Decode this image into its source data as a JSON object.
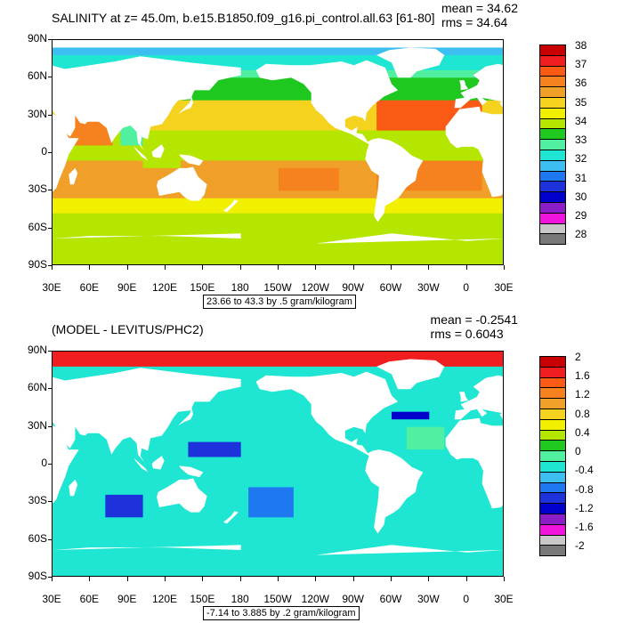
{
  "panels": [
    {
      "title": "SALINITY at z=  45.0m, b.e15.B1850.f09_g16.pi_control.all.63 [61-80]",
      "stats": {
        "mean": "mean = 34.62",
        "rms": "rms = 34.64"
      },
      "info": "23.66 to 43.3 by .5 gram/kilogram",
      "colorbar": {
        "labels": [
          "38",
          "37",
          "36",
          "35",
          "34",
          "33",
          "32",
          "31",
          "30",
          "29",
          "28"
        ],
        "colors": [
          "#c80000",
          "#f01e1e",
          "#fa5a14",
          "#f5821e",
          "#f0a028",
          "#f5d21e",
          "#f0f000",
          "#b4e600",
          "#1ec81e",
          "#50f0a0",
          "#1ee6d2",
          "#3cbef0",
          "#1e78f0",
          "#1e32dc",
          "#0000cd",
          "#8c1ec8",
          "#f014dc",
          "#c8c8c8",
          "#787878"
        ]
      },
      "field": "salinity"
    },
    {
      "title": "(MODEL - LEVITUS/PHC2)",
      "stats": {
        "mean": "mean = -0.2541",
        "rms": "rms = 0.6043"
      },
      "info": "-7.14 to 3.885 by .2 gram/kilogram",
      "colorbar": {
        "labels": [
          "2",
          "1.6",
          "1.2",
          "0.8",
          "0.4",
          "0",
          "-0.4",
          "-0.8",
          "-1.2",
          "-1.6",
          "-2"
        ],
        "colors": [
          "#c80000",
          "#f01e1e",
          "#fa5a14",
          "#f5821e",
          "#f0a028",
          "#f5d21e",
          "#f0f000",
          "#b4e600",
          "#1ec81e",
          "#50f0a0",
          "#1ee6d2",
          "#3cbef0",
          "#1e78f0",
          "#1e32dc",
          "#0000cd",
          "#8c1ec8",
          "#f014dc",
          "#c8c8c8",
          "#787878"
        ]
      },
      "field": "difference"
    }
  ],
  "axes": {
    "lat_labels": [
      "90N",
      "60N",
      "30N",
      "0",
      "30S",
      "60S",
      "90S"
    ],
    "lon_labels": [
      "30E",
      "60E",
      "90E",
      "120E",
      "150E",
      "180",
      "150W",
      "120W",
      "90W",
      "60W",
      "30W",
      "0",
      "30E"
    ]
  },
  "land_color": "#ffffff"
}
